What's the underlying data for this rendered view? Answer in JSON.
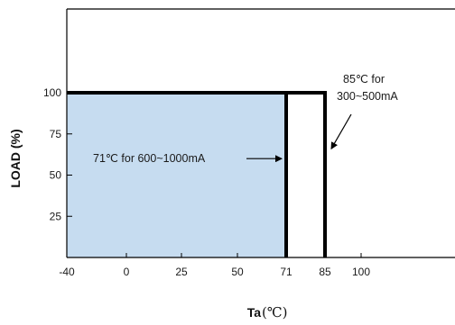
{
  "chart_data": {
    "type": "area",
    "xlabel": "Ta",
    "xunit": "(℃)",
    "ylabel": "LOAD (%)",
    "x_ticks": [
      "-40",
      "0",
      "25",
      "50",
      "71",
      "85",
      "100"
    ],
    "x_tick_values": [
      -40,
      0,
      25,
      50,
      71,
      85,
      100
    ],
    "y_ticks": [
      "25",
      "50",
      "75",
      "100"
    ],
    "y_tick_values": [
      25,
      50,
      75,
      100
    ],
    "xlim": [
      -40,
      145
    ],
    "ylim": [
      0,
      140
    ],
    "grid": false,
    "series": [
      {
        "x": [
          -40,
          71,
          71
        ],
        "y": [
          100,
          100,
          0
        ],
        "fill": "#c6dcf0"
      },
      {
        "x": [
          -40,
          85,
          85
        ],
        "y": [
          100,
          100,
          0
        ]
      }
    ],
    "annotations": [
      {
        "text": "71℃ for 600~1000mA",
        "target_x": 71,
        "target_y": 60
      },
      {
        "lines": [
          "85℃ for",
          "300~500mA"
        ],
        "target_x": 85,
        "target_y": 66
      }
    ]
  },
  "colors": {
    "area_fill": "#c6dcf0",
    "line": "#000000"
  }
}
